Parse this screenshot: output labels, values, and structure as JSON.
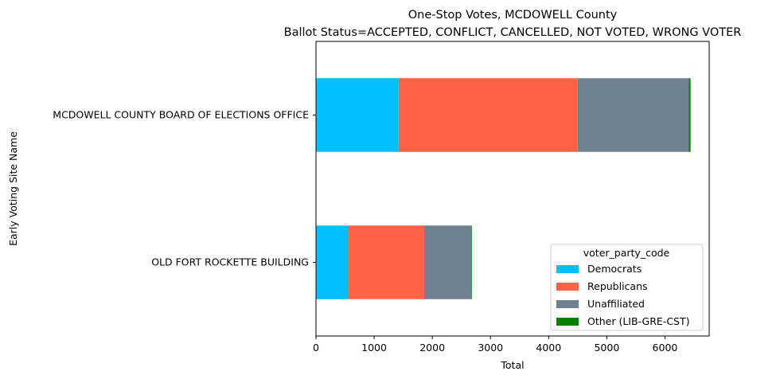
{
  "chart_data": {
    "type": "bar",
    "orientation": "horizontal",
    "stacked": true,
    "title": "One-Stop Votes, MCDOWELL County",
    "subtitle": "Ballot Status=ACCEPTED, CONFLICT, CANCELLED, NOT VOTED, WRONG VOTER",
    "xlabel": "Total",
    "ylabel": "Early Voting Site Name",
    "categories": [
      "MCDOWELL COUNTY BOARD OF ELECTIONS OFFICE",
      "OLD FORT ROCKETTE BUILDING"
    ],
    "series": [
      {
        "name": "Democrats",
        "color": "#00bfff",
        "values": [
          1420,
          560
        ]
      },
      {
        "name": "Republicans",
        "color": "#ff6347",
        "values": [
          3080,
          1300
        ]
      },
      {
        "name": "Unaffiliated",
        "color": "#708090",
        "values": [
          1910,
          810
        ]
      },
      {
        "name": "Other (LIB-GRE-CST)",
        "color": "#008000",
        "values": [
          30,
          10
        ]
      }
    ],
    "xlim": [
      0,
      6760
    ],
    "xticks": [
      0,
      1000,
      2000,
      3000,
      4000,
      5000,
      6000
    ],
    "legend": {
      "title": "voter_party_code",
      "position": "lower-right"
    },
    "grid": false
  }
}
